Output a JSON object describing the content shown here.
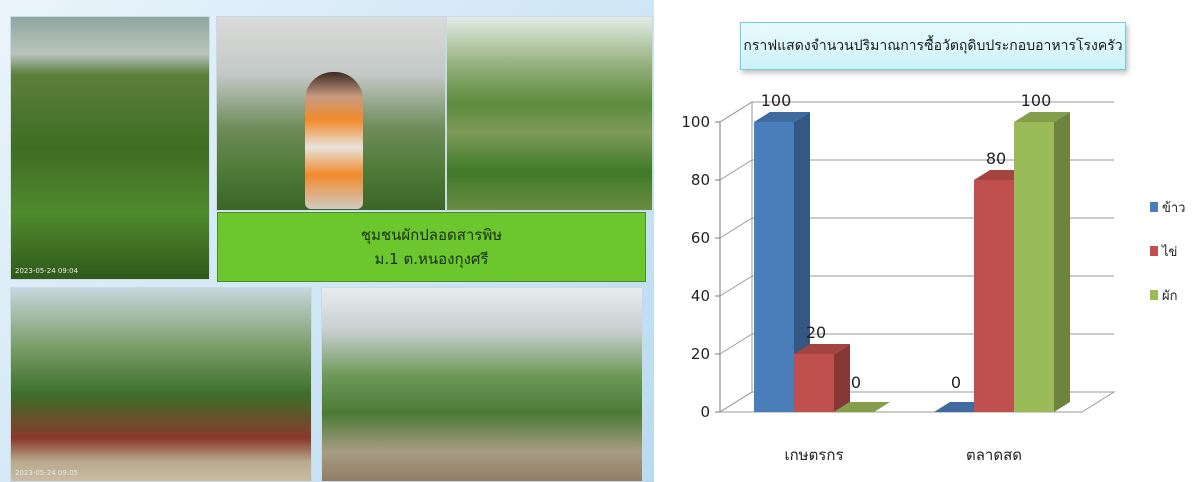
{
  "slide": {
    "caption_line1": "ชุมชนผักปลอดสารพิษ",
    "caption_line2": "ม.1 ต.หนองกุงศรี",
    "timestamp_1": "2023-05-24 09:04",
    "timestamp_2": "2023-05-24 09:05"
  },
  "chart_data": {
    "type": "bar",
    "title": "กราฟแสดงจำนวนปริมาณการซื้อวัตถุดิบประกอบอาหารโรงครัว",
    "categories": [
      "เกษตรกร",
      "ตลาดสด"
    ],
    "series": [
      {
        "name": "ข้าว",
        "values": [
          100,
          0
        ],
        "color": "#4a7ebb"
      },
      {
        "name": "ไข่",
        "values": [
          20,
          80
        ],
        "color": "#c0504d"
      },
      {
        "name": "ผัก",
        "values": [
          0,
          100
        ],
        "color": "#9bbb59"
      }
    ],
    "ylim": [
      0,
      100
    ],
    "yticks": [
      0,
      20,
      40,
      60,
      80,
      100
    ],
    "grid": true,
    "legend_position": "right",
    "three_d": true
  }
}
